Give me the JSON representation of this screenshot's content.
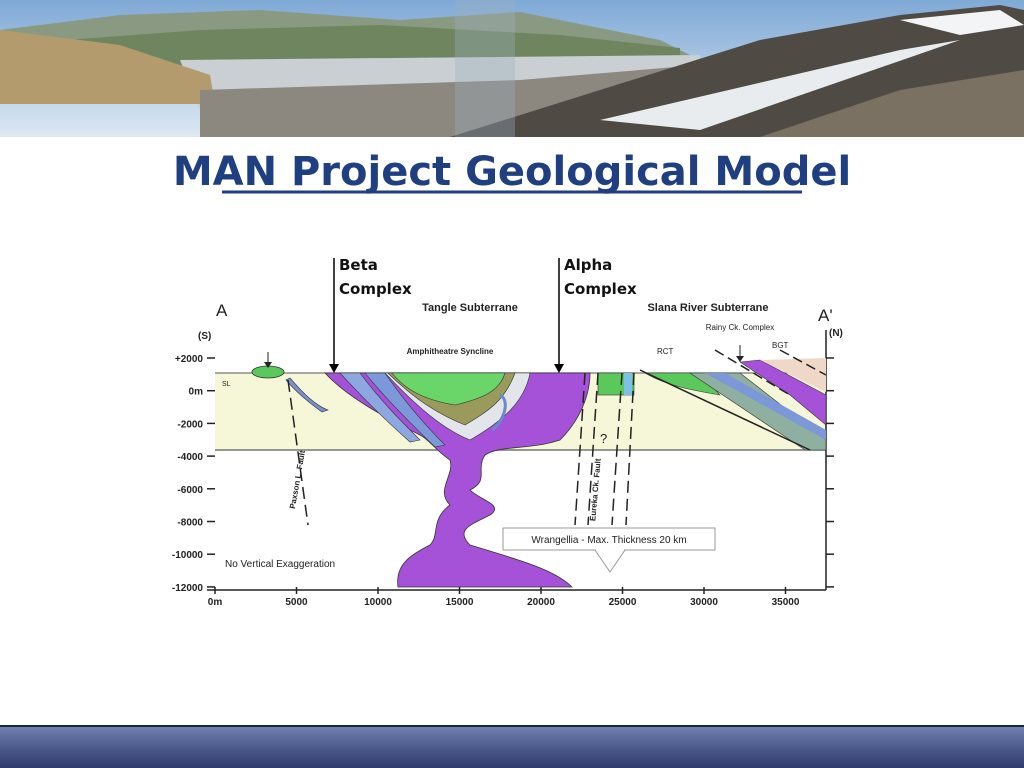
{
  "header": {
    "title": "MAN Project Geological Model"
  },
  "callouts": [
    "Beta Complex",
    "Alpha Complex"
  ],
  "diagram": {
    "section_start": "A",
    "section_end": "A'",
    "south": "(S)",
    "north": "(N)",
    "tangle": "Tangle Subterrane",
    "slana": "Slana River Subterrane",
    "syncline": "Amphitheatre Syncline",
    "rainy": "Rainy Ck. Complex",
    "rct": "RCT",
    "bgt": "BGT",
    "sl": "SL",
    "paxson": "Paxson L. Fault",
    "eureka": "Eureka Ck. Fault",
    "query": "?",
    "wrangellia": "Wrangellia - Max. Thickness 20 km",
    "note": "No Vertical Exaggeration",
    "y_axis": [
      "+2000",
      "0m",
      "-2000",
      "-4000",
      "-6000",
      "-8000",
      "-10000",
      "-12000"
    ],
    "x_axis": [
      "0m",
      "5000",
      "10000",
      "15000",
      "20000",
      "25000",
      "30000",
      "35000"
    ]
  }
}
